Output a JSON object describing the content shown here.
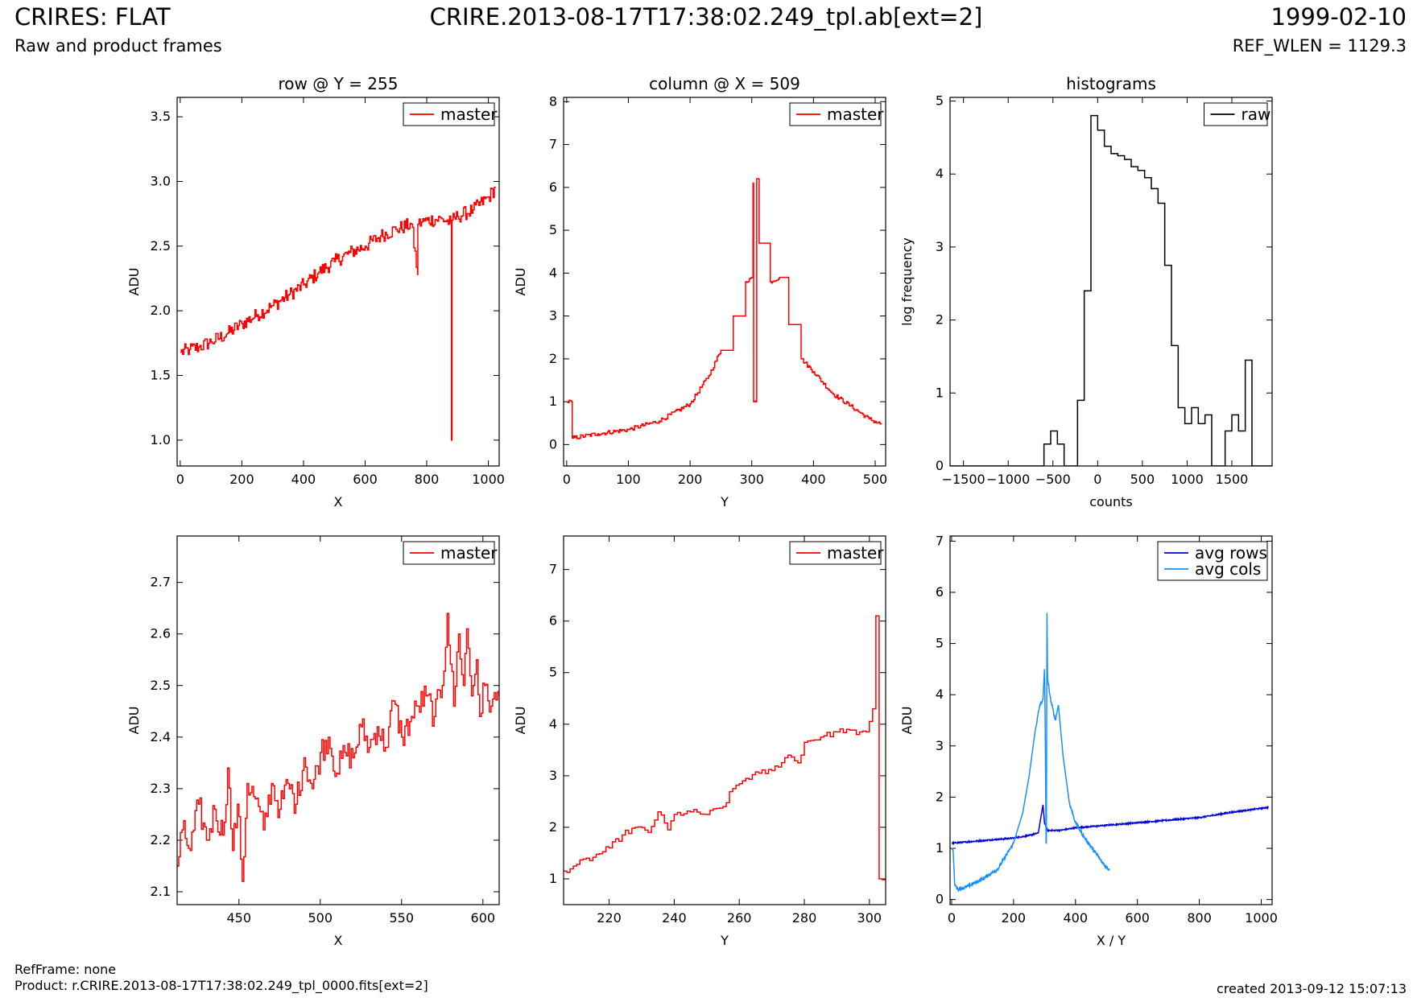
{
  "header": {
    "title": "CRIRES: FLAT",
    "subtitle": "Raw and product frames",
    "file": "CRIRE.2013-08-17T17:38:02.249_tpl.ab[ext=2]",
    "date": "1999-02-10",
    "ref_wlen": "REF_WLEN = 1129.3"
  },
  "footer": {
    "ref_frame": "RefFrame: none",
    "product": "Product: r.CRIRE.2013-08-17T17:38:02.249_tpl_0000.fits[ext=2]",
    "created": "created 2013-09-12 15:07:13"
  },
  "colors": {
    "master": "#ff0000",
    "raw": "#000000",
    "avg_rows": "#0000dd",
    "avg_cols": "#1a8fff"
  },
  "chart_data": [
    {
      "id": "row-full",
      "type": "line",
      "title": "row @ Y = 255",
      "xlabel": "X",
      "ylabel": "ADU",
      "xlim": [
        -10,
        1035
      ],
      "ylim": [
        0.8,
        3.65
      ],
      "xticks": [
        0,
        200,
        400,
        600,
        800,
        1000
      ],
      "yticks": [
        1.0,
        1.5,
        2.0,
        2.5,
        3.0,
        3.5
      ],
      "legend": "top-right",
      "series": [
        {
          "name": "master",
          "color": "#ff0000",
          "step": true,
          "points": [
            [
              0,
              1.68
            ],
            [
              30,
              1.7
            ],
            [
              60,
              1.72
            ],
            [
              100,
              1.76
            ],
            [
              150,
              1.82
            ],
            [
              200,
              1.9
            ],
            [
              250,
              1.97
            ],
            [
              300,
              2.04
            ],
            [
              350,
              2.12
            ],
            [
              400,
              2.2
            ],
            [
              450,
              2.3
            ],
            [
              500,
              2.38
            ],
            [
              550,
              2.45
            ],
            [
              600,
              2.5
            ],
            [
              650,
              2.58
            ],
            [
              700,
              2.63
            ],
            [
              750,
              2.67
            ],
            [
              770,
              2.28
            ],
            [
              771,
              2.67
            ],
            [
              800,
              2.7
            ],
            [
              850,
              2.71
            ],
            [
              878,
              2.68
            ],
            [
              880,
              1.0
            ],
            [
              882,
              2.7
            ],
            [
              900,
              2.73
            ],
            [
              950,
              2.78
            ],
            [
              1000,
              2.88
            ],
            [
              1023,
              2.95
            ]
          ],
          "noise": 0.055,
          "density": 4
        }
      ]
    },
    {
      "id": "col-full",
      "type": "line",
      "title": "column @ X = 509",
      "xlabel": "Y",
      "ylabel": "ADU",
      "xlim": [
        -5,
        517
      ],
      "ylim": [
        -0.5,
        8.1
      ],
      "xticks": [
        0,
        100,
        200,
        300,
        400,
        500
      ],
      "yticks": [
        0,
        1,
        2,
        3,
        4,
        5,
        6,
        7,
        8
      ],
      "legend": "top-right",
      "series": [
        {
          "name": "master",
          "color": "#ff0000",
          "step": true,
          "points": [
            [
              0,
              1.0
            ],
            [
              8,
              1.0
            ],
            [
              9,
              0.15
            ],
            [
              50,
              0.25
            ],
            [
              100,
              0.35
            ],
            [
              150,
              0.55
            ],
            [
              200,
              0.95
            ],
            [
              230,
              1.6
            ],
            [
              250,
              2.2
            ],
            [
              270,
              3.0
            ],
            [
              290,
              3.8
            ],
            [
              300,
              3.9
            ],
            [
              302,
              6.1
            ],
            [
              303,
              1.0
            ],
            [
              307,
              1.0
            ],
            [
              308,
              6.2
            ],
            [
              312,
              4.7
            ],
            [
              330,
              3.8
            ],
            [
              345,
              3.9
            ],
            [
              360,
              2.8
            ],
            [
              380,
              2.0
            ],
            [
              400,
              1.7
            ],
            [
              430,
              1.2
            ],
            [
              460,
              0.9
            ],
            [
              490,
              0.6
            ],
            [
              510,
              0.47
            ]
          ],
          "noise": 0.05,
          "density": 2
        }
      ]
    },
    {
      "id": "hist",
      "type": "bar",
      "title": "histograms",
      "xlabel": "counts",
      "ylabel": "log frequency",
      "xlim": [
        -1650,
        1950
      ],
      "ylim": [
        0,
        5.05
      ],
      "xticks": [
        -1500,
        -1000,
        -500,
        0,
        500,
        1000,
        1500
      ],
      "xticklabels": [
        "−1500",
        "−1000",
        "−500",
        "0",
        "500",
        "1000",
        "1500"
      ],
      "yticks": [
        0,
        1,
        2,
        3,
        4,
        5
      ],
      "legend": "top-right",
      "series": [
        {
          "name": "raw",
          "color": "#000000",
          "edges": [
            -1650,
            -1575,
            -1500,
            -1425,
            -1350,
            -1275,
            -1200,
            -1125,
            -1050,
            -975,
            -900,
            -825,
            -750,
            -675,
            -600,
            -525,
            -450,
            -375,
            -300,
            -225,
            -150,
            -75,
            0,
            75,
            150,
            225,
            300,
            375,
            450,
            525,
            600,
            675,
            750,
            825,
            900,
            975,
            1050,
            1125,
            1200,
            1275,
            1350,
            1425,
            1500,
            1575,
            1650,
            1725,
            1800,
            1875,
            1950
          ],
          "values": [
            0,
            0,
            0,
            0,
            0,
            0,
            0,
            0,
            0,
            0,
            0,
            0,
            0,
            0,
            0.3,
            0.48,
            0.3,
            0,
            0,
            0.9,
            2.4,
            4.8,
            4.6,
            4.38,
            4.28,
            4.25,
            4.2,
            4.1,
            4.05,
            3.95,
            3.8,
            3.6,
            2.75,
            1.65,
            0.8,
            0.58,
            0.8,
            0.58,
            0.7,
            0,
            0,
            0.48,
            0.7,
            0.48,
            1.45,
            0,
            0,
            0
          ]
        }
      ]
    },
    {
      "id": "row-zoom",
      "type": "line",
      "title": "",
      "xlabel": "X",
      "ylabel": "ADU",
      "xlim": [
        412,
        610
      ],
      "ylim": [
        2.075,
        2.79
      ],
      "xticks": [
        450,
        500,
        550,
        600
      ],
      "yticks": [
        2.1,
        2.2,
        2.3,
        2.4,
        2.5,
        2.6,
        2.7
      ],
      "legend": "top-right",
      "series": [
        {
          "name": "master",
          "color": "#ff0000",
          "step": true,
          "points": [
            [
              412,
              2.15
            ],
            [
              415,
              2.22
            ],
            [
              420,
              2.18
            ],
            [
              425,
              2.27
            ],
            [
              430,
              2.2
            ],
            [
              435,
              2.26
            ],
            [
              440,
              2.21
            ],
            [
              443,
              2.34
            ],
            [
              446,
              2.18
            ],
            [
              449,
              2.27
            ],
            [
              452,
              2.12
            ],
            [
              455,
              2.31
            ],
            [
              460,
              2.28
            ],
            [
              465,
              2.22
            ],
            [
              470,
              2.31
            ],
            [
              475,
              2.26
            ],
            [
              480,
              2.31
            ],
            [
              485,
              2.27
            ],
            [
              490,
              2.36
            ],
            [
              495,
              2.3
            ],
            [
              500,
              2.37
            ],
            [
              505,
              2.4
            ],
            [
              510,
              2.33
            ],
            [
              515,
              2.37
            ],
            [
              520,
              2.36
            ],
            [
              525,
              2.42
            ],
            [
              530,
              2.38
            ],
            [
              535,
              2.42
            ],
            [
              540,
              2.38
            ],
            [
              545,
              2.47
            ],
            [
              550,
              2.4
            ],
            [
              555,
              2.43
            ],
            [
              560,
              2.46
            ],
            [
              565,
              2.48
            ],
            [
              570,
              2.44
            ],
            [
              575,
              2.5
            ],
            [
              578,
              2.64
            ],
            [
              582,
              2.46
            ],
            [
              585,
              2.6
            ],
            [
              588,
              2.5
            ],
            [
              590,
              2.61
            ],
            [
              593,
              2.48
            ],
            [
              596,
              2.55
            ],
            [
              598,
              2.44
            ],
            [
              601,
              2.5
            ],
            [
              605,
              2.46
            ],
            [
              610,
              2.48
            ]
          ],
          "noise": 0.028,
          "density": 1
        }
      ]
    },
    {
      "id": "col-zoom",
      "type": "line",
      "title": "",
      "xlabel": "Y",
      "ylabel": "ADU",
      "xlim": [
        206,
        305
      ],
      "ylim": [
        0.5,
        7.65
      ],
      "xticks": [
        220,
        240,
        260,
        280,
        300
      ],
      "yticks": [
        1,
        2,
        3,
        4,
        5,
        6,
        7
      ],
      "legend": "top-right",
      "series": [
        {
          "name": "master",
          "color": "#ff0000",
          "step": true,
          "points": [
            [
              206,
              1.15
            ],
            [
              210,
              1.28
            ],
            [
              215,
              1.42
            ],
            [
              220,
              1.6
            ],
            [
              224,
              1.85
            ],
            [
              228,
              2.0
            ],
            [
              232,
              1.9
            ],
            [
              235,
              2.3
            ],
            [
              238,
              1.95
            ],
            [
              240,
              2.25
            ],
            [
              245,
              2.3
            ],
            [
              250,
              2.25
            ],
            [
              255,
              2.4
            ],
            [
              258,
              2.75
            ],
            [
              262,
              2.95
            ],
            [
              266,
              3.05
            ],
            [
              270,
              3.1
            ],
            [
              275,
              3.4
            ],
            [
              278,
              3.25
            ],
            [
              280,
              3.65
            ],
            [
              285,
              3.75
            ],
            [
              290,
              3.85
            ],
            [
              293,
              3.9
            ],
            [
              296,
              3.8
            ],
            [
              299,
              3.85
            ],
            [
              301,
              4.3
            ],
            [
              302,
              6.1
            ],
            [
              303,
              1.0
            ],
            [
              305,
              1.0
            ]
          ],
          "noise": 0.06,
          "density": 1
        }
      ]
    },
    {
      "id": "avg",
      "type": "line",
      "title": "",
      "xlabel": "X / Y",
      "ylabel": "ADU",
      "xlim": [
        -5,
        1035
      ],
      "ylim": [
        -0.1,
        7.1
      ],
      "xticks": [
        0,
        200,
        400,
        600,
        800,
        1000
      ],
      "yticks": [
        0,
        1,
        2,
        3,
        4,
        5,
        6,
        7
      ],
      "legend": "top-right",
      "series": [
        {
          "name": "avg rows",
          "color": "#0000dd",
          "step": false,
          "points": [
            [
              0,
              1.1
            ],
            [
              100,
              1.15
            ],
            [
              200,
              1.2
            ],
            [
              250,
              1.25
            ],
            [
              280,
              1.3
            ],
            [
              295,
              1.85
            ],
            [
              300,
              1.5
            ],
            [
              310,
              1.35
            ],
            [
              350,
              1.35
            ],
            [
              400,
              1.4
            ],
            [
              500,
              1.45
            ],
            [
              600,
              1.5
            ],
            [
              700,
              1.55
            ],
            [
              800,
              1.6
            ],
            [
              900,
              1.7
            ],
            [
              1023,
              1.8
            ]
          ],
          "noise": 0.012,
          "density": 1
        },
        {
          "name": "avg cols",
          "color": "#1a8fff",
          "step": false,
          "points": [
            [
              0,
              1.0
            ],
            [
              5,
              0.95
            ],
            [
              10,
              0.3
            ],
            [
              20,
              0.2
            ],
            [
              50,
              0.25
            ],
            [
              100,
              0.4
            ],
            [
              150,
              0.6
            ],
            [
              200,
              1.1
            ],
            [
              230,
              1.7
            ],
            [
              250,
              2.4
            ],
            [
              270,
              3.3
            ],
            [
              285,
              3.8
            ],
            [
              295,
              3.9
            ],
            [
              300,
              4.5
            ],
            [
              302,
              3.6
            ],
            [
              305,
              1.1
            ],
            [
              306,
              1.1
            ],
            [
              308,
              5.6
            ],
            [
              310,
              4.3
            ],
            [
              320,
              3.9
            ],
            [
              335,
              3.5
            ],
            [
              345,
              3.8
            ],
            [
              360,
              2.8
            ],
            [
              380,
              1.9
            ],
            [
              400,
              1.5
            ],
            [
              430,
              1.2
            ],
            [
              460,
              0.95
            ],
            [
              490,
              0.7
            ],
            [
              510,
              0.58
            ]
          ],
          "noise": 0.035,
          "density": 1
        }
      ]
    }
  ]
}
